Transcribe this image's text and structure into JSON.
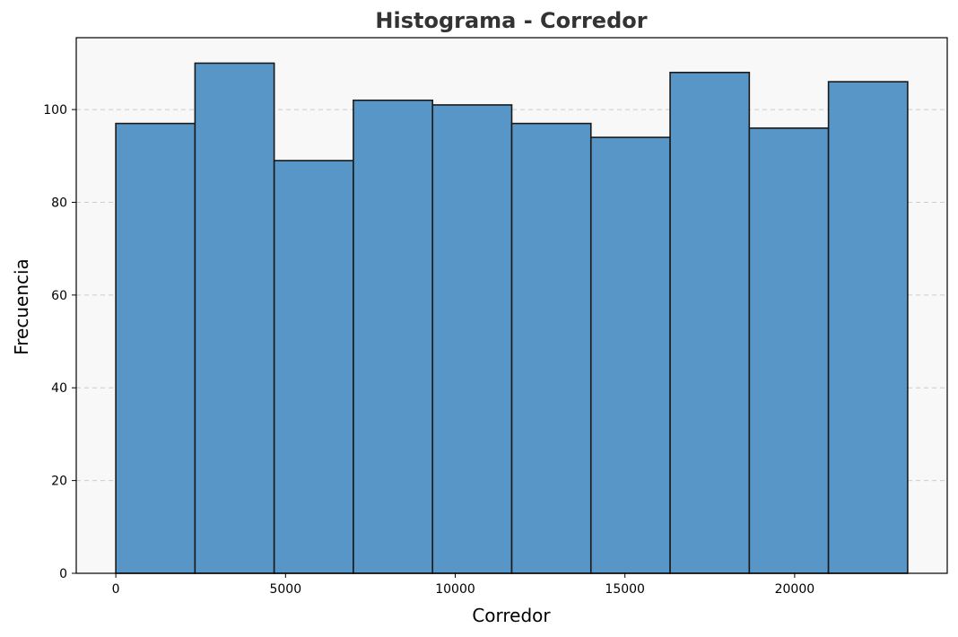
{
  "chart_data": {
    "type": "bar",
    "title": "Histograma - Corredor",
    "xlabel": "Corredor",
    "ylabel": "Frecuencia",
    "bin_edges": [
      0,
      2333,
      4666,
      6999,
      9332,
      11665,
      13998,
      16331,
      18664,
      20997,
      23330
    ],
    "values": [
      97,
      110,
      89,
      102,
      101,
      97,
      94,
      108,
      96,
      106
    ],
    "xlim": [
      -1166,
      24496
    ],
    "ylim": [
      0,
      115.5
    ],
    "xticks": [
      0,
      5000,
      10000,
      15000,
      20000
    ],
    "yticks": [
      0,
      20,
      40,
      60,
      80,
      100
    ],
    "grid": "y-dashed",
    "colors": {
      "bar_fill": "#5796c6",
      "bar_edge": "#1a1a1a",
      "plot_background": "#f8f8f8",
      "grid": "#cccccc",
      "title": "#333333"
    }
  }
}
